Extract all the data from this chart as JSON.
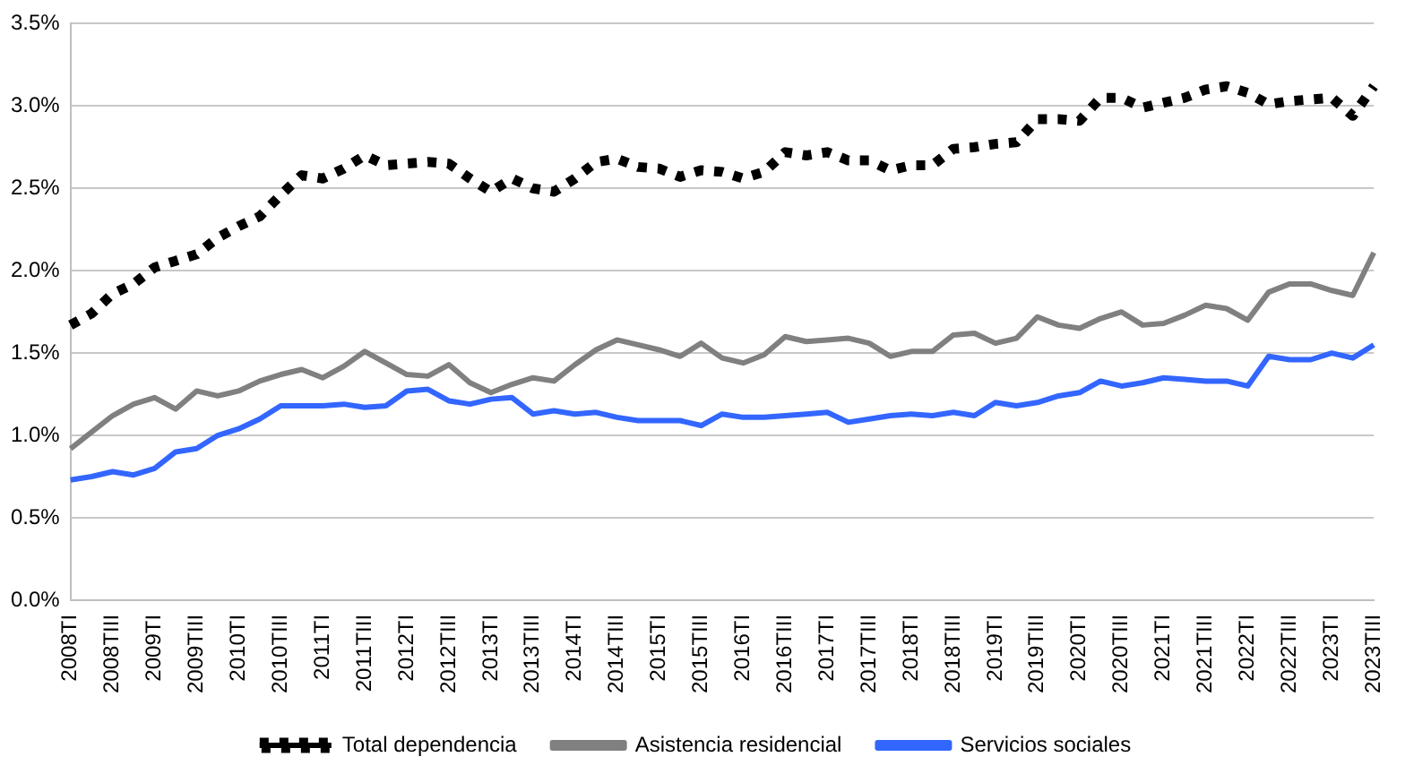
{
  "chart_data": {
    "type": "line",
    "categories": [
      "2008TI",
      null,
      "2008TIII",
      null,
      "2009TI",
      null,
      "2009TIII",
      null,
      "2010TI",
      null,
      "2010TIII",
      null,
      "2011TI",
      null,
      "2011TIII",
      null,
      "2012TI",
      null,
      "2012TIII",
      null,
      "2013TI",
      null,
      "2013TIII",
      null,
      "2014TI",
      null,
      "2014TIII",
      null,
      "2015TI",
      null,
      "2015TIII",
      null,
      "2016TI",
      null,
      "2016TIII",
      null,
      "2017TI",
      null,
      "2017TIII",
      null,
      "2018TI",
      null,
      "2018TIII",
      null,
      "2019TI",
      null,
      "2019TIII",
      null,
      "2020TI",
      null,
      "2020TIII",
      null,
      "2021TI",
      null,
      "2021TIII",
      null,
      "2022TI",
      null,
      "2022TIII",
      null,
      "2023TI",
      null,
      "2023TIII"
    ],
    "series": [
      {
        "name": "Total dependencia",
        "color": "#000000",
        "line_style": "dotted",
        "values": [
          1.67,
          1.74,
          1.86,
          1.92,
          2.02,
          2.06,
          2.1,
          2.2,
          2.27,
          2.33,
          2.46,
          2.58,
          2.56,
          2.62,
          2.7,
          2.64,
          2.65,
          2.66,
          2.65,
          2.56,
          2.48,
          2.56,
          2.5,
          2.48,
          2.56,
          2.66,
          2.68,
          2.63,
          2.62,
          2.57,
          2.61,
          2.6,
          2.56,
          2.6,
          2.72,
          2.7,
          2.72,
          2.67,
          2.67,
          2.61,
          2.64,
          2.64,
          2.74,
          2.75,
          2.77,
          2.78,
          2.92,
          2.92,
          2.91,
          3.05,
          3.05,
          2.99,
          3.02,
          3.05,
          3.1,
          3.12,
          3.08,
          3.01,
          3.03,
          3.04,
          3.05,
          2.94,
          3.12
        ]
      },
      {
        "name": "Asistencia residencial",
        "color": "#808080",
        "line_style": "solid",
        "values": [
          0.92,
          1.02,
          1.12,
          1.19,
          1.23,
          1.16,
          1.27,
          1.24,
          1.27,
          1.33,
          1.37,
          1.4,
          1.35,
          1.42,
          1.51,
          1.44,
          1.37,
          1.36,
          1.43,
          1.32,
          1.26,
          1.31,
          1.35,
          1.33,
          1.43,
          1.52,
          1.58,
          1.55,
          1.52,
          1.48,
          1.56,
          1.47,
          1.44,
          1.49,
          1.6,
          1.57,
          1.58,
          1.59,
          1.56,
          1.48,
          1.51,
          1.51,
          1.61,
          1.62,
          1.56,
          1.59,
          1.72,
          1.67,
          1.65,
          1.71,
          1.75,
          1.67,
          1.68,
          1.73,
          1.79,
          1.77,
          1.7,
          1.87,
          1.92,
          1.92,
          1.88,
          1.85,
          2.11
        ]
      },
      {
        "name": "Servicios sociales",
        "color": "#3366ff",
        "line_style": "solid",
        "values": [
          0.73,
          0.75,
          0.78,
          0.76,
          0.8,
          0.9,
          0.92,
          1.0,
          1.04,
          1.1,
          1.18,
          1.18,
          1.18,
          1.19,
          1.17,
          1.18,
          1.27,
          1.28,
          1.21,
          1.19,
          1.22,
          1.23,
          1.13,
          1.15,
          1.13,
          1.14,
          1.11,
          1.09,
          1.09,
          1.09,
          1.06,
          1.13,
          1.11,
          1.11,
          1.12,
          1.13,
          1.14,
          1.08,
          1.1,
          1.12,
          1.13,
          1.12,
          1.14,
          1.12,
          1.2,
          1.18,
          1.2,
          1.24,
          1.26,
          1.33,
          1.3,
          1.32,
          1.35,
          1.34,
          1.33,
          1.33,
          1.3,
          1.48,
          1.46,
          1.46,
          1.5,
          1.47,
          1.55
        ]
      }
    ],
    "ylim": [
      0,
      3.5
    ],
    "yticks": [
      {
        "value": 0,
        "label": "0.0%"
      },
      {
        "value": 0.5,
        "label": "0.5%"
      },
      {
        "value": 1,
        "label": "1.0%"
      },
      {
        "value": 1.5,
        "label": "1.5%"
      },
      {
        "value": 2,
        "label": "2.0%"
      },
      {
        "value": 2.5,
        "label": "2.5%"
      },
      {
        "value": 3,
        "label": "3.0%"
      },
      {
        "value": 3.5,
        "label": "3.5%"
      }
    ],
    "grid": "y",
    "legend": "bottom",
    "marker": "none"
  }
}
